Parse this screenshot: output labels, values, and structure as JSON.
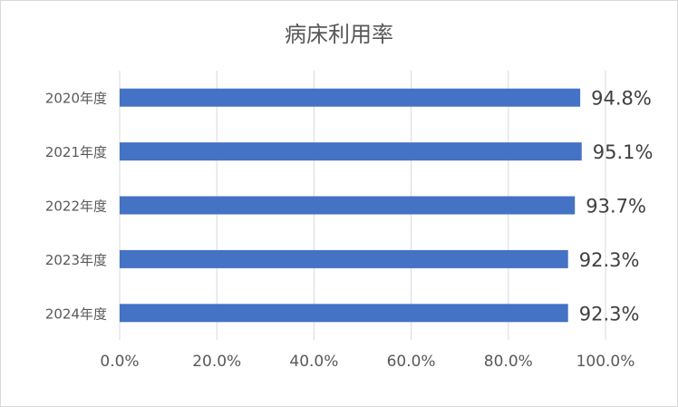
{
  "chart_data": {
    "type": "bar",
    "orientation": "horizontal",
    "title": "病床利用率",
    "categories": [
      "2020年度",
      "2021年度",
      "2022年度",
      "2023年度",
      "2024年度"
    ],
    "values": [
      94.8,
      95.1,
      93.7,
      92.3,
      92.3
    ],
    "data_labels": [
      "94.8%",
      "95.1%",
      "93.7%",
      "92.3%",
      "92.3%"
    ],
    "x_ticks": [
      "0.0%",
      "20.0%",
      "40.0%",
      "60.0%",
      "80.0%",
      "100.0%"
    ],
    "xlim": [
      0,
      100
    ],
    "grid": true,
    "legend": "none",
    "bar_color": "#4472c4"
  }
}
